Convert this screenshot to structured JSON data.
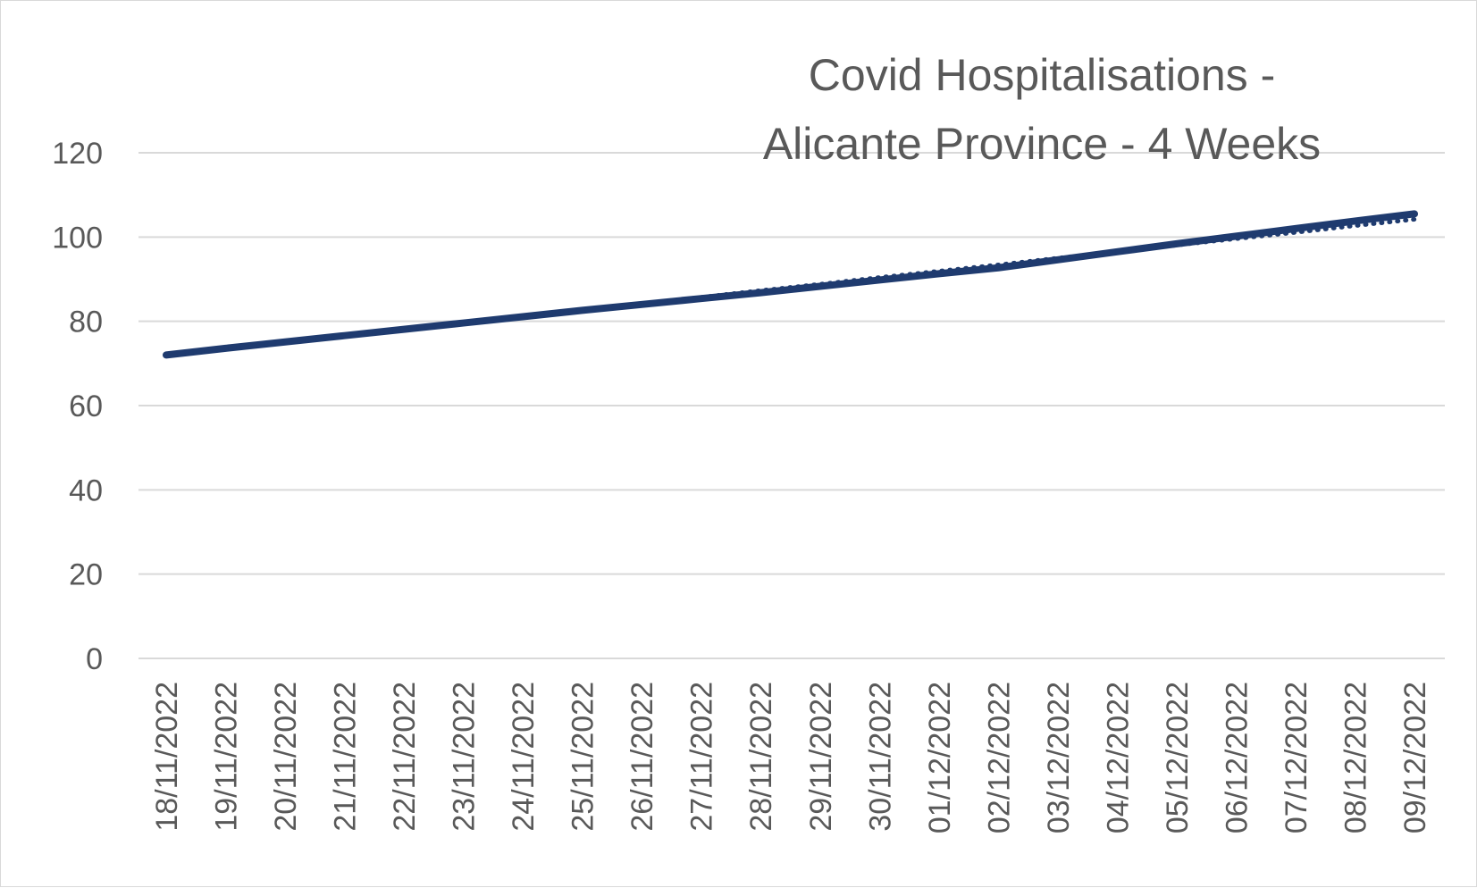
{
  "chart_data": {
    "type": "line",
    "title_lines": [
      "Covid Hospitalisations -",
      "Alicante Province - 4 Weeks"
    ],
    "xlabel": "",
    "ylabel": "",
    "ylim": [
      0,
      120
    ],
    "yticks": [
      0,
      20,
      40,
      60,
      80,
      100,
      120
    ],
    "grid": true,
    "legend": "none",
    "categories": [
      "18/11/2022",
      "19/11/2022",
      "20/11/2022",
      "21/11/2022",
      "22/11/2022",
      "23/11/2022",
      "24/11/2022",
      "25/11/2022",
      "26/11/2022",
      "27/11/2022",
      "28/11/2022",
      "29/11/2022",
      "30/11/2022",
      "01/12/2022",
      "02/12/2022",
      "03/12/2022",
      "04/12/2022",
      "05/12/2022",
      "06/12/2022",
      "07/12/2022",
      "08/12/2022",
      "09/12/2022"
    ],
    "series": [
      {
        "values": [
          72,
          73.6,
          75.1,
          76.6,
          78.1,
          79.6,
          81.1,
          82.6,
          84,
          85.4,
          86.8,
          88.3,
          89.8,
          91.3,
          92.7,
          94.6,
          96.5,
          98.4,
          100.2,
          102,
          103.8,
          105.5
        ],
        "color": "#1f3b6f",
        "style": "solid"
      },
      {
        "values": [
          71.8,
          73.4,
          75.0,
          76.5,
          78.0,
          79.6,
          81.1,
          82.7,
          84.2,
          85.7,
          87.3,
          88.8,
          90.4,
          91.9,
          93.4,
          95.0,
          96.5,
          98.1,
          99.6,
          101.1,
          102.7,
          104.2
        ],
        "color": "#1f3b6f",
        "style": "dotted"
      }
    ]
  }
}
